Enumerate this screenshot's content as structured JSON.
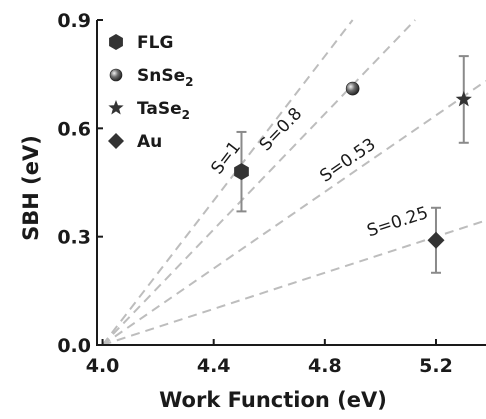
{
  "chart_data": {
    "type": "scatter",
    "xlabel": "Work Function (eV)",
    "ylabel": "SBH (eV)",
    "xlim": [
      3.98,
      5.38
    ],
    "ylim": [
      0.0,
      0.9
    ],
    "xticks": [
      "4.0",
      "4.4",
      "4.8",
      "5.2"
    ],
    "xtick_values": [
      4.0,
      4.4,
      4.8,
      5.2
    ],
    "yticks": [
      "0.0",
      "0.3",
      "0.6",
      "0.9"
    ],
    "ytick_values": [
      0.0,
      0.3,
      0.6,
      0.9
    ],
    "grid": false,
    "legend_position": "top-left",
    "series": [
      {
        "name": "FLG",
        "name_sub": "",
        "marker": "hexagon",
        "points": [
          {
            "x": 4.5,
            "y": 0.48,
            "err": 0.11
          }
        ]
      },
      {
        "name": "SnSe",
        "name_sub": "2",
        "marker": "sphere",
        "points": [
          {
            "x": 4.9,
            "y": 0.71,
            "err": 0
          }
        ]
      },
      {
        "name": "TaSe",
        "name_sub": "2",
        "marker": "star",
        "points": [
          {
            "x": 5.3,
            "y": 0.68,
            "err": 0.12
          }
        ]
      },
      {
        "name": "Au",
        "name_sub": "",
        "marker": "diamond",
        "points": [
          {
            "x": 5.2,
            "y": 0.29,
            "err": 0.09
          }
        ]
      }
    ],
    "reference_lines": [
      {
        "label": "S=1",
        "slope": 1,
        "x0": 4.0
      },
      {
        "label": "S=0.8",
        "slope": 0.8,
        "x0": 4.0
      },
      {
        "label": "S=0.53",
        "slope": 0.53,
        "x0": 4.0
      },
      {
        "label": "S=0.25",
        "slope": 0.25,
        "x0": 4.0
      }
    ],
    "colors": {
      "marker": "#333333",
      "reference_line": "#bdbdbd",
      "errorbar": "#8a8a8a",
      "axis": "#1a1a1a"
    }
  }
}
